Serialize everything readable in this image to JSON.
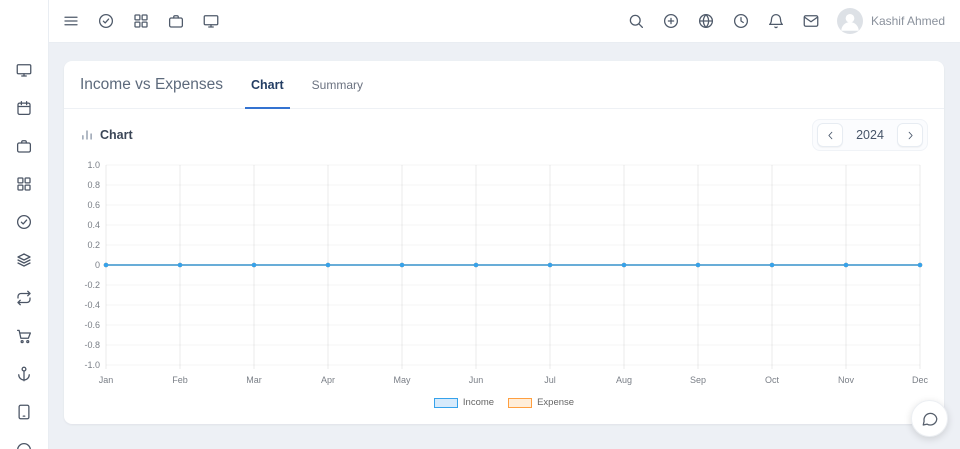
{
  "topbar": {
    "left_icons": [
      "menu",
      "check-circle",
      "grid",
      "briefcase",
      "monitor"
    ],
    "right_icons": [
      "search",
      "plus-circle",
      "globe",
      "clock",
      "bell",
      "mail"
    ],
    "user": {
      "name": "Kashif Ahmed"
    }
  },
  "sidebar": {
    "icons": [
      "monitor",
      "calendar",
      "briefcase",
      "grid",
      "check-circle",
      "layers",
      "repeat",
      "cart",
      "anchor",
      "tablet",
      "circle"
    ]
  },
  "card": {
    "title": "Income vs Expenses",
    "tabs": [
      {
        "label": "Chart",
        "active": true
      },
      {
        "label": "Summary",
        "active": false
      }
    ],
    "section_title": "Chart",
    "year": "2024"
  },
  "chart_data": {
    "type": "line",
    "title": "",
    "xlabel": "",
    "ylabel": "",
    "x": [
      "Jan",
      "Feb",
      "Mar",
      "Apr",
      "May",
      "Jun",
      "Jul",
      "Aug",
      "Sep",
      "Oct",
      "Nov",
      "Dec"
    ],
    "series": [
      {
        "name": "Income",
        "color": "#36a2eb",
        "fill": "#d7eafb",
        "values": [
          0,
          0,
          0,
          0,
          0,
          0,
          0,
          0,
          0,
          0,
          0,
          0
        ]
      },
      {
        "name": "Expense",
        "color": "#ff9f40",
        "fill": "#ffeeda",
        "values": [
          0,
          0,
          0,
          0,
          0,
          0,
          0,
          0,
          0,
          0,
          0,
          0
        ]
      }
    ],
    "ylim": [
      -1.0,
      1.0
    ],
    "y_tick_step": 0.2,
    "grid": true,
    "legend_position": "bottom"
  },
  "colors": {
    "accent_blue": "#3473d1",
    "active_tab_text": "#233d63",
    "income": "#36a2eb",
    "expense": "#ff9f40"
  }
}
